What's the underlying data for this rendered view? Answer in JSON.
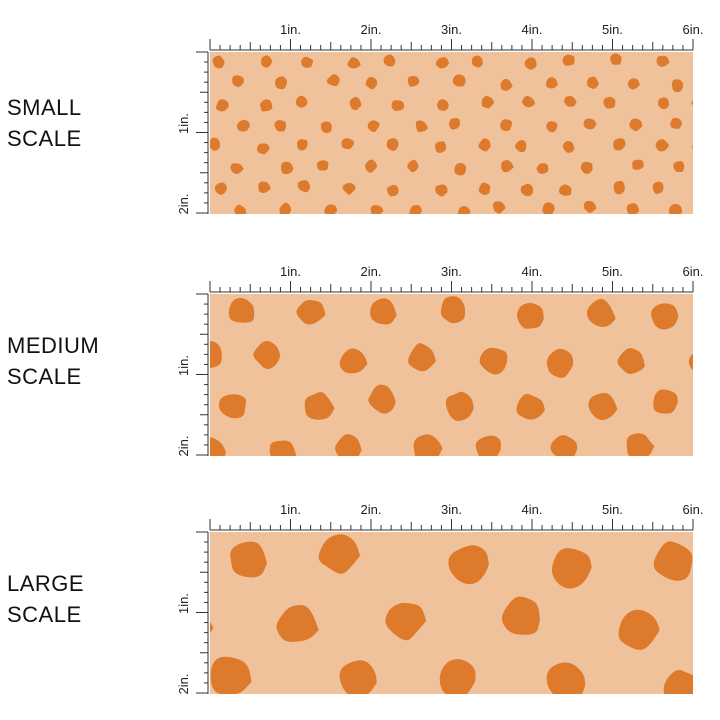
{
  "colors": {
    "background": "#efc29b",
    "dot": "#dd7a2c",
    "ruler": "#333333"
  },
  "ruler": {
    "horizontal_labels": [
      "1in.",
      "2in.",
      "3in.",
      "4in.",
      "5in.",
      "6in."
    ],
    "vertical_labels": [
      "1in.",
      "2in."
    ]
  },
  "sections": [
    {
      "id": "small",
      "label_line1": "SMALL",
      "label_line2": "SCALE"
    },
    {
      "id": "medium",
      "label_line1": "MEDIUM",
      "label_line2": "SCALE"
    },
    {
      "id": "large",
      "label_line1": "LARGE",
      "label_line2": "SCALE"
    }
  ]
}
